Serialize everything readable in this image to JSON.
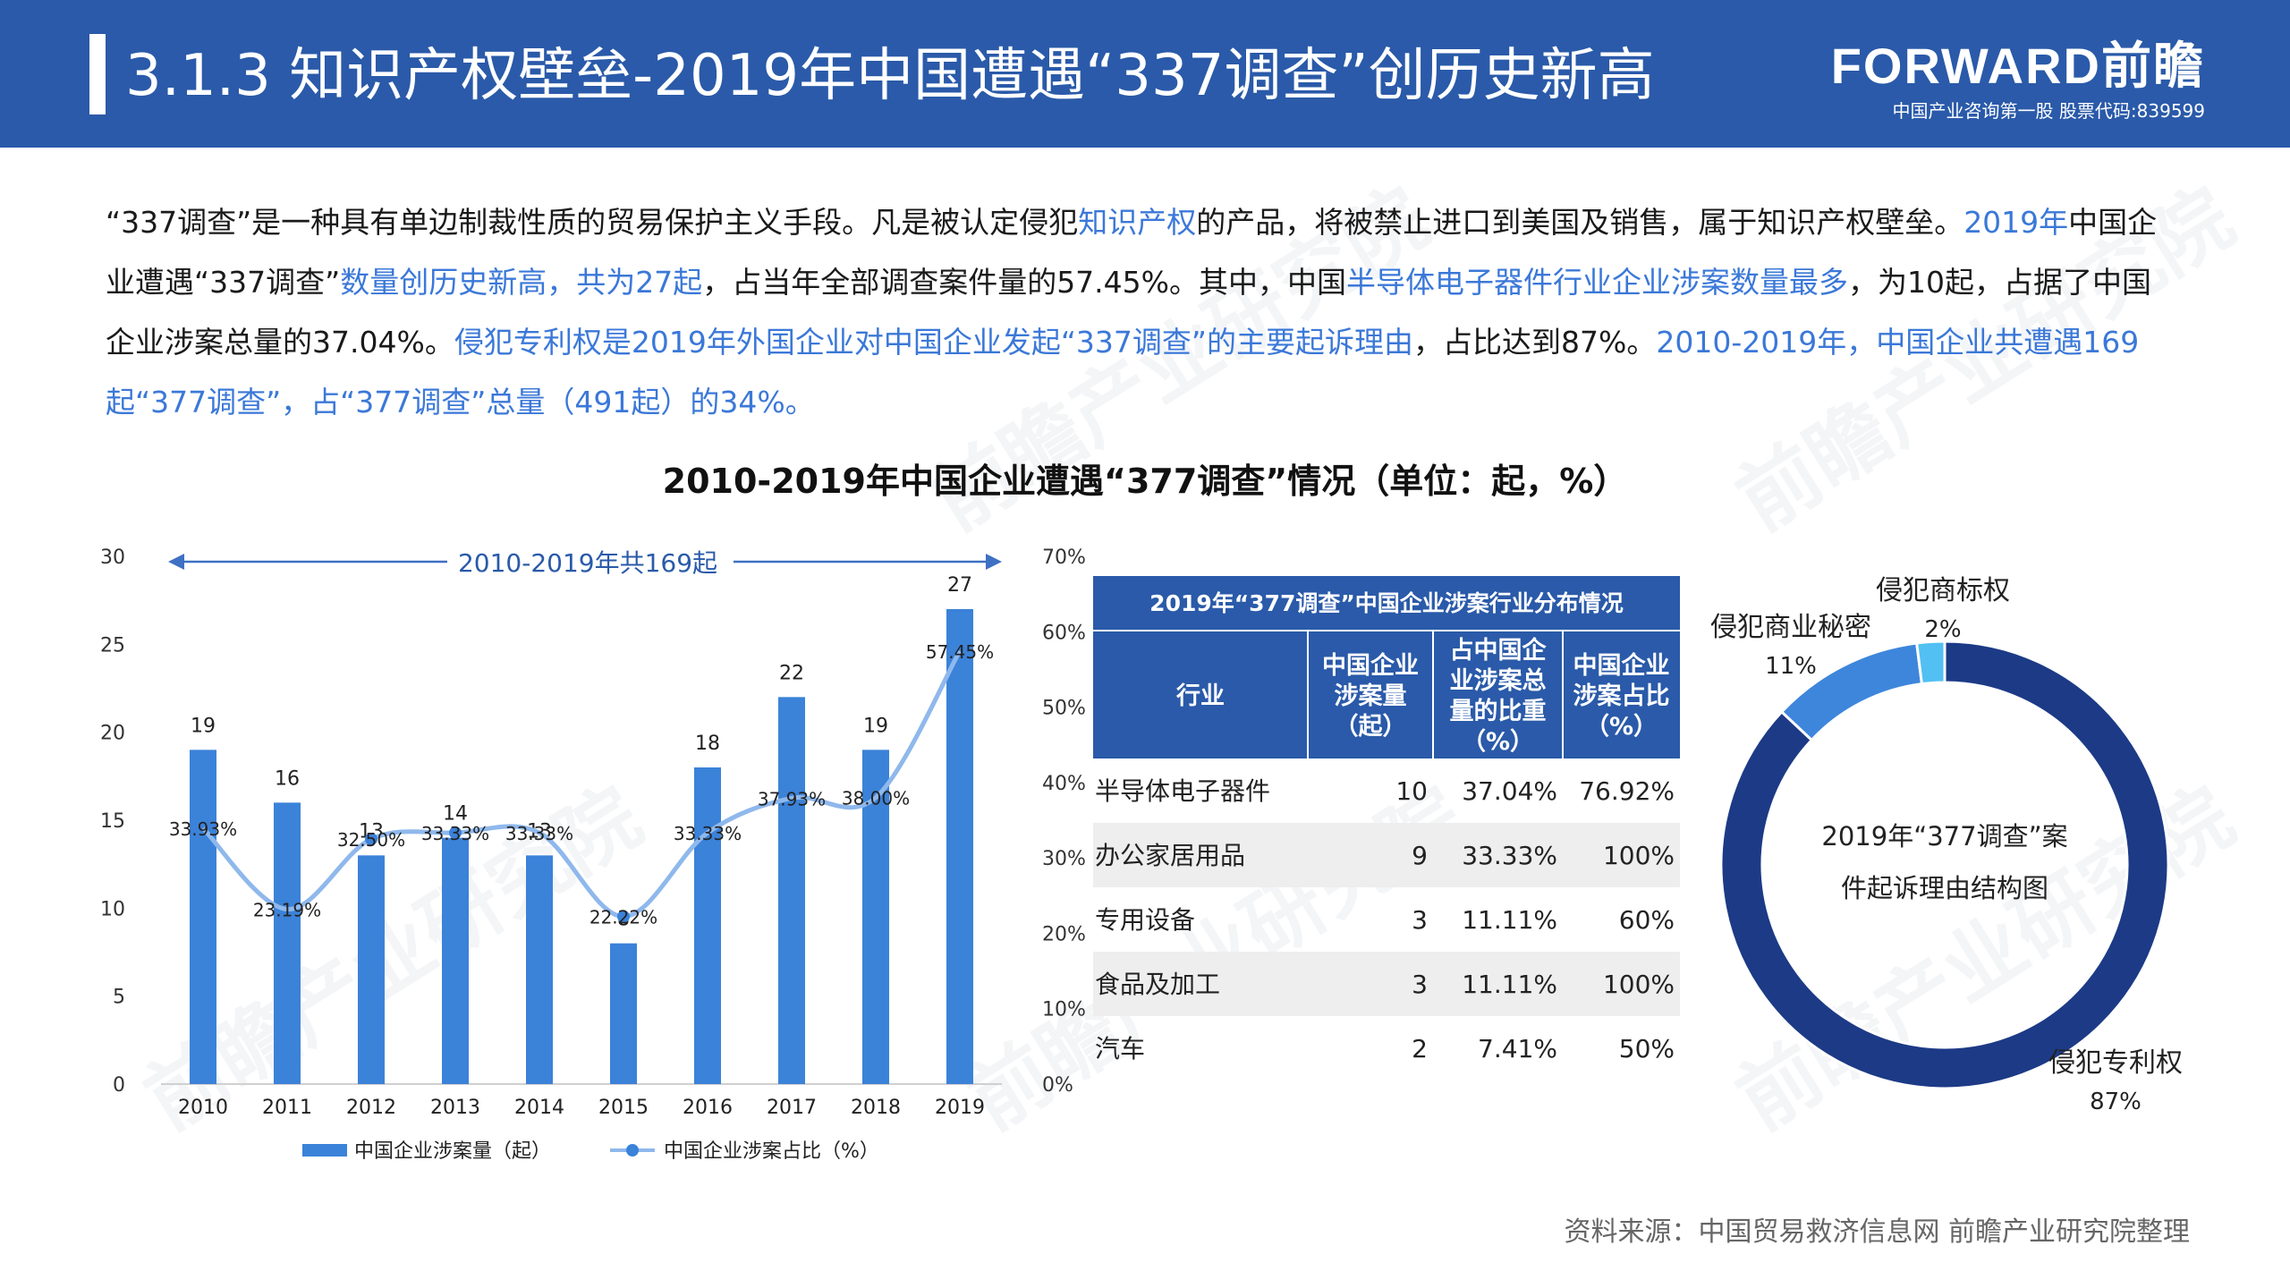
{
  "header": {
    "title": "3.1.3 知识产权壁垒-2019年中国遭遇“337调查”创历史新高",
    "logo": "FORWARD前瞻",
    "subline": "中国产业咨询第一股 股票代码:839599"
  },
  "intro": {
    "p1": "“337调查”是一种具有单边制裁性质的贸易保护主义手段。凡是被认定侵犯",
    "p2": "知识产权",
    "p3": "的产品，将被禁止进口到美国及销售，属于知识产权壁垒。",
    "p4": "2019年",
    "p5": "中国企业遭遇“337调查”",
    "p6": "数量创历史新高，共为27起",
    "p7": "，占当年全部调查案件量的57.45%。其中，中国",
    "p8": "半导体电子器件行业企业涉案数量最多",
    "p9": "，为10起，占据了中国企业涉案总量的37.04%。",
    "p10": "侵犯专利权是2019年外国企业对中国企业发起“337调查”的主要起诉理由",
    "p11": "，占比达到87%。",
    "p12": "2010-2019年，中国企业共遭遇169起“377调查”，占“377调查”总量（491起）的34%。"
  },
  "chart_title": "2010-2019年中国企业遭遇“377调查”情况（单位：起，%）",
  "colors": {
    "header": "#2a5aa9",
    "bar": "#3b82d9",
    "line": "#8fb8ec",
    "table_header": "#2a5aa9",
    "donut_main": "#1c3a86",
    "donut_mid": "#3e86dc",
    "donut_small": "#52c0f2"
  },
  "chart_data": [
    {
      "type": "bar",
      "categories": [
        "2010",
        "2011",
        "2012",
        "2013",
        "2014",
        "2015",
        "2016",
        "2017",
        "2018",
        "2019"
      ],
      "series": [
        {
          "name": "中国企业涉案量（起）",
          "values": [
            19,
            16,
            13,
            14,
            13,
            8,
            18,
            22,
            19,
            27
          ],
          "labels": [
            "19",
            "16",
            "13",
            "14",
            "13",
            "8",
            "18",
            "22",
            "19",
            "27"
          ]
        },
        {
          "name": "中国企业涉案占比（%）",
          "type": "line",
          "values": [
            33.93,
            23.19,
            32.5,
            33.33,
            33.33,
            22.22,
            33.33,
            37.93,
            38.0,
            57.45
          ],
          "labels": [
            "33.93%",
            "23.19%",
            "32.50%",
            "33.33%",
            "33.33%",
            "22.22%",
            "33.33%",
            "37.93%",
            "38.00%",
            "57.45%"
          ]
        }
      ],
      "ylim": [
        0,
        30
      ],
      "yticks": [
        "0",
        "5",
        "10",
        "15",
        "20",
        "25",
        "30"
      ],
      "y2lim": [
        0,
        70
      ],
      "y2ticks": [
        "0%",
        "10%",
        "20%",
        "30%",
        "40%",
        "50%",
        "60%",
        "70%"
      ],
      "annotation": "2010-2019年共169起",
      "legend_position": "bottom"
    },
    {
      "type": "table",
      "title": "2019年“377调查”中国企业涉案行业分布情况",
      "headers": [
        "行业",
        "中国企业涉案量（起）",
        "占中国企业涉案总量的比重（%）",
        "中国企业涉案占比（%）"
      ],
      "header_lines": [
        [
          "行业"
        ],
        [
          "中国企业",
          "涉案量",
          "（起）"
        ],
        [
          "占中国企",
          "业涉案总",
          "量的比重",
          "（%）"
        ],
        [
          "中国企业",
          "涉案占比",
          "（%）"
        ]
      ],
      "rows": [
        [
          "半导体电子器件",
          "10",
          "37.04%",
          "76.92%"
        ],
        [
          "办公家居用品",
          "9",
          "33.33%",
          "100%"
        ],
        [
          "专用设备",
          "3",
          "11.11%",
          "60%"
        ],
        [
          "食品及加工",
          "3",
          "11.11%",
          "100%"
        ],
        [
          "汽车",
          "2",
          "7.41%",
          "50%"
        ]
      ]
    },
    {
      "type": "pie",
      "title": "2019年“377调查”案件起诉理由结构图",
      "title_lines": [
        "2019年“377调查”案",
        "件起诉理由结构图"
      ],
      "slices": [
        {
          "name": "侵犯专利权",
          "value": 87,
          "label": "87%"
        },
        {
          "name": "侵犯商业秘密",
          "value": 11,
          "label": "11%"
        },
        {
          "name": "侵犯商标权",
          "value": 2,
          "label": "2%"
        }
      ]
    }
  ],
  "source": "资料来源：中国贸易救济信息网 前瞻产业研究院整理",
  "watermark": "前瞻产业研究院"
}
